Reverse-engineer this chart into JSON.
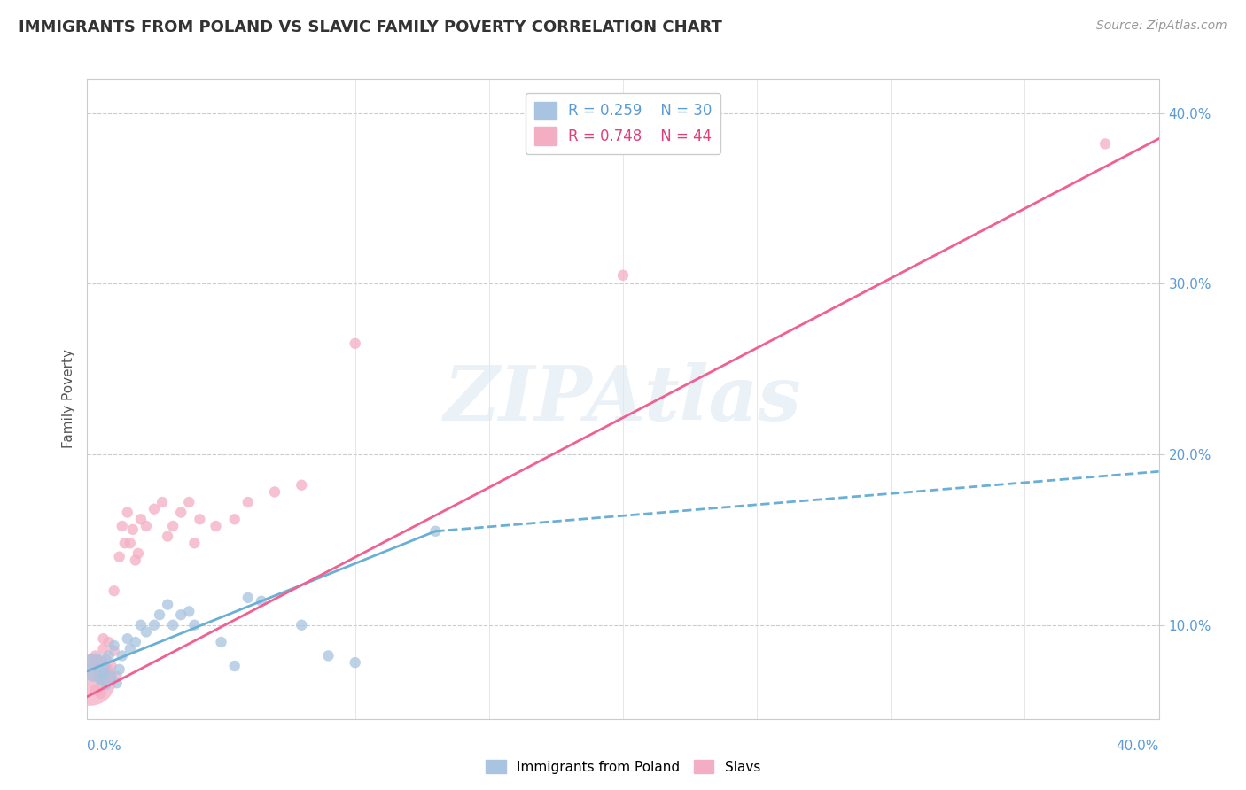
{
  "title": "IMMIGRANTS FROM POLAND VS SLAVIC FAMILY POVERTY CORRELATION CHART",
  "source": "Source: ZipAtlas.com",
  "ylabel": "Family Poverty",
  "color_poland": "#a8c4e0",
  "color_slavs": "#f4aec4",
  "line_color_poland": "#6aafd6",
  "line_color_slavs": "#f06090",
  "watermark_text": "ZIPAtlas",
  "poland_line": [
    [
      0.0,
      0.073
    ],
    [
      0.13,
      0.155
    ]
  ],
  "poland_line_dashed": [
    [
      0.13,
      0.155
    ],
    [
      0.4,
      0.19
    ]
  ],
  "slavs_line": [
    [
      0.0,
      0.058
    ],
    [
      0.4,
      0.385
    ]
  ],
  "poland_scatter": [
    [
      0.003,
      0.075
    ],
    [
      0.005,
      0.068
    ],
    [
      0.006,
      0.072
    ],
    [
      0.007,
      0.065
    ],
    [
      0.008,
      0.082
    ],
    [
      0.009,
      0.07
    ],
    [
      0.01,
      0.088
    ],
    [
      0.011,
      0.066
    ],
    [
      0.012,
      0.074
    ],
    [
      0.013,
      0.082
    ],
    [
      0.015,
      0.092
    ],
    [
      0.016,
      0.086
    ],
    [
      0.018,
      0.09
    ],
    [
      0.02,
      0.1
    ],
    [
      0.022,
      0.096
    ],
    [
      0.025,
      0.1
    ],
    [
      0.027,
      0.106
    ],
    [
      0.03,
      0.112
    ],
    [
      0.032,
      0.1
    ],
    [
      0.035,
      0.106
    ],
    [
      0.038,
      0.108
    ],
    [
      0.04,
      0.1
    ],
    [
      0.05,
      0.09
    ],
    [
      0.055,
      0.076
    ],
    [
      0.06,
      0.116
    ],
    [
      0.065,
      0.114
    ],
    [
      0.08,
      0.1
    ],
    [
      0.09,
      0.082
    ],
    [
      0.1,
      0.078
    ],
    [
      0.13,
      0.155
    ]
  ],
  "poland_sizes": [
    550,
    80,
    80,
    80,
    80,
    80,
    80,
    80,
    80,
    80,
    80,
    80,
    80,
    80,
    80,
    80,
    80,
    80,
    80,
    80,
    80,
    80,
    80,
    80,
    80,
    80,
    80,
    80,
    80,
    80
  ],
  "slavs_scatter": [
    [
      0.001,
      0.068
    ],
    [
      0.002,
      0.075
    ],
    [
      0.003,
      0.082
    ],
    [
      0.003,
      0.062
    ],
    [
      0.004,
      0.07
    ],
    [
      0.004,
      0.078
    ],
    [
      0.005,
      0.06
    ],
    [
      0.005,
      0.068
    ],
    [
      0.006,
      0.086
    ],
    [
      0.006,
      0.092
    ],
    [
      0.007,
      0.066
    ],
    [
      0.007,
      0.08
    ],
    [
      0.008,
      0.072
    ],
    [
      0.008,
      0.09
    ],
    [
      0.009,
      0.076
    ],
    [
      0.01,
      0.12
    ],
    [
      0.01,
      0.085
    ],
    [
      0.011,
      0.07
    ],
    [
      0.012,
      0.14
    ],
    [
      0.013,
      0.158
    ],
    [
      0.014,
      0.148
    ],
    [
      0.015,
      0.166
    ],
    [
      0.016,
      0.148
    ],
    [
      0.017,
      0.156
    ],
    [
      0.018,
      0.138
    ],
    [
      0.019,
      0.142
    ],
    [
      0.02,
      0.162
    ],
    [
      0.022,
      0.158
    ],
    [
      0.025,
      0.168
    ],
    [
      0.028,
      0.172
    ],
    [
      0.03,
      0.152
    ],
    [
      0.032,
      0.158
    ],
    [
      0.035,
      0.166
    ],
    [
      0.038,
      0.172
    ],
    [
      0.04,
      0.148
    ],
    [
      0.042,
      0.162
    ],
    [
      0.048,
      0.158
    ],
    [
      0.055,
      0.162
    ],
    [
      0.06,
      0.172
    ],
    [
      0.07,
      0.178
    ],
    [
      0.08,
      0.182
    ],
    [
      0.1,
      0.265
    ],
    [
      0.2,
      0.305
    ],
    [
      0.38,
      0.382
    ]
  ],
  "slavs_sizes": [
    1800,
    80,
    80,
    80,
    80,
    80,
    80,
    80,
    80,
    80,
    80,
    80,
    80,
    80,
    80,
    80,
    80,
    80,
    80,
    80,
    80,
    80,
    80,
    80,
    80,
    80,
    80,
    80,
    80,
    80,
    80,
    80,
    80,
    80,
    80,
    80,
    80,
    80,
    80,
    80,
    80,
    80,
    80,
    80
  ],
  "xmin": 0.0,
  "xmax": 0.4,
  "ymin": 0.045,
  "ymax": 0.42,
  "yticks": [
    0.1,
    0.2,
    0.3,
    0.4
  ],
  "ytick_labels": [
    "10.0%",
    "20.0%",
    "30.0%",
    "40.0%"
  ],
  "xtick_labels_shown": [
    "0.0%",
    "40.0%"
  ],
  "grid_yticks": [
    0.1,
    0.2,
    0.3,
    0.4
  ],
  "grid_xticks": [
    0.05,
    0.1,
    0.15,
    0.2,
    0.25,
    0.3,
    0.35,
    0.4
  ]
}
